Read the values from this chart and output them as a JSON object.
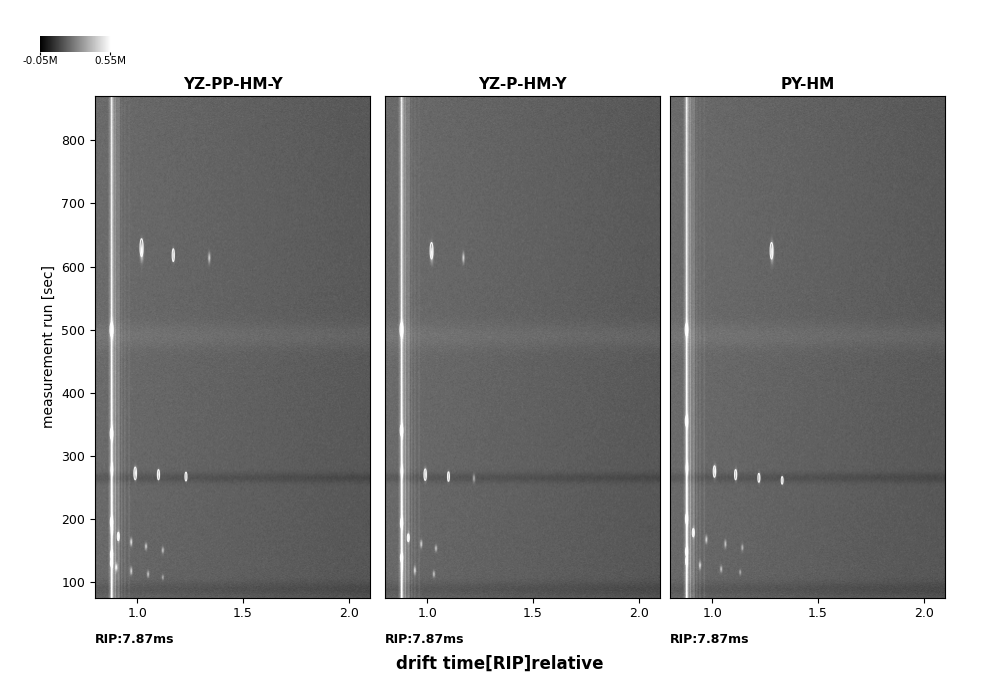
{
  "title": "drift time[RIP]relative",
  "panel_titles": [
    "YZ-PP-HM-Y",
    "YZ-P-HM-Y",
    "PY-HM"
  ],
  "rip_labels": [
    "RIP:7.87ms",
    "RIP:7.87ms",
    "RIP:7.87ms"
  ],
  "ylabel": "measurement run [sec]",
  "xlabel": "drift time[RIP]relative",
  "xlim": [
    0.8,
    2.1
  ],
  "ylim": [
    75,
    870
  ],
  "xticks": [
    1.0,
    1.5,
    2.0
  ],
  "yticks": [
    100,
    200,
    300,
    400,
    500,
    600,
    700,
    800
  ],
  "colorbar_min": "-0.05M",
  "colorbar_max": "0.55M",
  "background_color": "#ffffff",
  "seed": 42,
  "base_gray": 0.38,
  "rip_x": 0.878
}
